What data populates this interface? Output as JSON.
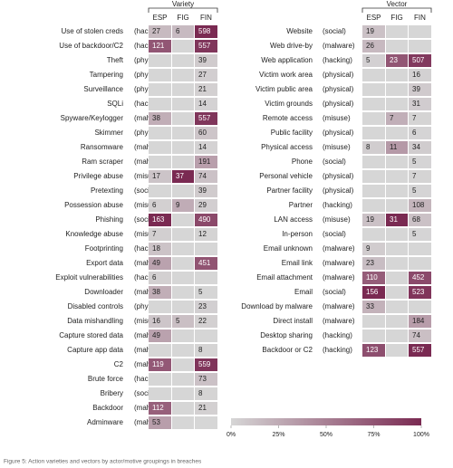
{
  "chart_data": [
    {
      "type": "heatmap",
      "title": "Variety",
      "columns": [
        "ESP",
        "FIG",
        "FIN"
      ],
      "colors": [
        "#d6d6d6",
        "#7a2a52"
      ],
      "rows": [
        {
          "label": "Use of stolen creds",
          "group": "(hacking)",
          "values": [
            27,
            6,
            598
          ]
        },
        {
          "label": "Use of backdoor/C2",
          "group": "(hacking)",
          "values": [
            121,
            null,
            557
          ]
        },
        {
          "label": "Theft",
          "group": "(physical)",
          "values": [
            null,
            null,
            39
          ]
        },
        {
          "label": "Tampering",
          "group": "(physical)",
          "values": [
            null,
            null,
            27
          ]
        },
        {
          "label": "Surveillance",
          "group": "(physical)",
          "values": [
            null,
            null,
            21
          ]
        },
        {
          "label": "SQLi",
          "group": "(hacking)",
          "values": [
            null,
            null,
            14
          ]
        },
        {
          "label": "Spyware/Keylogger",
          "group": "(malware)",
          "values": [
            38,
            null,
            557
          ]
        },
        {
          "label": "Skimmer",
          "group": "(physical)",
          "values": [
            null,
            null,
            60
          ]
        },
        {
          "label": "Ransomware",
          "group": "(malware)",
          "values": [
            null,
            null,
            14
          ]
        },
        {
          "label": "Ram scraper",
          "group": "(malware)",
          "values": [
            null,
            null,
            191
          ]
        },
        {
          "label": "Privilege abuse",
          "group": "(misuse)",
          "values": [
            17,
            37,
            74
          ]
        },
        {
          "label": "Pretexting",
          "group": "(social)",
          "values": [
            null,
            null,
            39
          ]
        },
        {
          "label": "Possession abuse",
          "group": "(misuse)",
          "values": [
            6,
            9,
            29
          ]
        },
        {
          "label": "Phishing",
          "group": "(social)",
          "values": [
            163,
            null,
            490
          ]
        },
        {
          "label": "Knowledge abuse",
          "group": "(misuse)",
          "values": [
            7,
            null,
            12
          ]
        },
        {
          "label": "Footprinting",
          "group": "(hacking)",
          "values": [
            18,
            null,
            null
          ]
        },
        {
          "label": "Export data",
          "group": "(malware)",
          "values": [
            49,
            null,
            451
          ]
        },
        {
          "label": "Exploit vulnerabilities",
          "group": "(hacking)",
          "values": [
            6,
            null,
            null
          ]
        },
        {
          "label": "Downloader",
          "group": "(malware)",
          "values": [
            38,
            null,
            5
          ]
        },
        {
          "label": "Disabled controls",
          "group": "(physical)",
          "values": [
            null,
            null,
            23
          ]
        },
        {
          "label": "Data mishandling",
          "group": "(misuse)",
          "values": [
            16,
            5,
            22
          ]
        },
        {
          "label": "Capture stored data",
          "group": "(malware)",
          "values": [
            49,
            null,
            null
          ]
        },
        {
          "label": "Capture app data",
          "group": "(malware)",
          "values": [
            null,
            null,
            8
          ]
        },
        {
          "label": "C2",
          "group": "(malware)",
          "values": [
            119,
            null,
            559
          ]
        },
        {
          "label": "Brute force",
          "group": "(hacking)",
          "values": [
            null,
            null,
            73
          ]
        },
        {
          "label": "Bribery",
          "group": "(social)",
          "values": [
            null,
            null,
            8
          ]
        },
        {
          "label": "Backdoor",
          "group": "(malware)",
          "values": [
            112,
            null,
            21
          ]
        },
        {
          "label": "Adminware",
          "group": "(malware)",
          "values": [
            53,
            null,
            null
          ]
        }
      ]
    },
    {
      "type": "heatmap",
      "title": "Vector",
      "columns": [
        "ESP",
        "FIG",
        "FIN"
      ],
      "colors": [
        "#d6d6d6",
        "#7a2a52"
      ],
      "rows": [
        {
          "label": "Website",
          "group": "(social)",
          "values": [
            19,
            null,
            null
          ]
        },
        {
          "label": "Web drive-by",
          "group": "(malware)",
          "values": [
            26,
            null,
            null
          ]
        },
        {
          "label": "Web application",
          "group": "(hacking)",
          "values": [
            5,
            23,
            507
          ]
        },
        {
          "label": "Victim work area",
          "group": "(physical)",
          "values": [
            null,
            null,
            16
          ]
        },
        {
          "label": "Victim public area",
          "group": "(physical)",
          "values": [
            null,
            null,
            39
          ]
        },
        {
          "label": "Victim grounds",
          "group": "(physical)",
          "values": [
            null,
            null,
            31
          ]
        },
        {
          "label": "Remote access",
          "group": "(misuse)",
          "values": [
            null,
            7,
            7
          ]
        },
        {
          "label": "Public facility",
          "group": "(physical)",
          "values": [
            null,
            null,
            6
          ]
        },
        {
          "label": "Physical access",
          "group": "(misuse)",
          "values": [
            8,
            11,
            34
          ]
        },
        {
          "label": "Phone",
          "group": "(social)",
          "values": [
            null,
            null,
            5
          ]
        },
        {
          "label": "Personal vehicle",
          "group": "(physical)",
          "values": [
            null,
            null,
            7
          ]
        },
        {
          "label": "Partner facility",
          "group": "(physical)",
          "values": [
            null,
            null,
            5
          ]
        },
        {
          "label": "Partner",
          "group": "(hacking)",
          "values": [
            null,
            null,
            108
          ]
        },
        {
          "label": "LAN access",
          "group": "(misuse)",
          "values": [
            19,
            31,
            68
          ]
        },
        {
          "label": "In-person",
          "group": "(social)",
          "values": [
            null,
            null,
            5
          ]
        },
        {
          "label": "Email unknown",
          "group": "(malware)",
          "values": [
            9,
            null,
            null
          ]
        },
        {
          "label": "Email link",
          "group": "(malware)",
          "values": [
            23,
            null,
            null
          ]
        },
        {
          "label": "Email attachment",
          "group": "(malware)",
          "values": [
            110,
            null,
            452
          ]
        },
        {
          "label": "Email",
          "group": "(social)",
          "values": [
            156,
            null,
            523
          ]
        },
        {
          "label": "Download by malware",
          "group": "(malware)",
          "values": [
            33,
            null,
            null
          ]
        },
        {
          "label": "Direct install",
          "group": "(malware)",
          "values": [
            null,
            null,
            184
          ]
        },
        {
          "label": "Desktop sharing",
          "group": "(hacking)",
          "values": [
            null,
            null,
            74
          ]
        },
        {
          "label": "Backdoor or C2",
          "group": "(hacking)",
          "values": [
            123,
            null,
            557
          ]
        }
      ]
    }
  ],
  "colorbar": {
    "lim": [
      0,
      100
    ],
    "ticks": [
      {
        "value": 0,
        "label": "0%"
      },
      {
        "value": 25,
        "label": "25%"
      },
      {
        "value": 50,
        "label": "50%"
      },
      {
        "value": 75,
        "label": "75%"
      },
      {
        "value": 100,
        "label": "100%"
      }
    ],
    "colors": [
      "#d6d6d6",
      "#7a2a52"
    ]
  },
  "caption": "Figure 5: Action varieties and vectors by actor/motive groupings in breaches"
}
